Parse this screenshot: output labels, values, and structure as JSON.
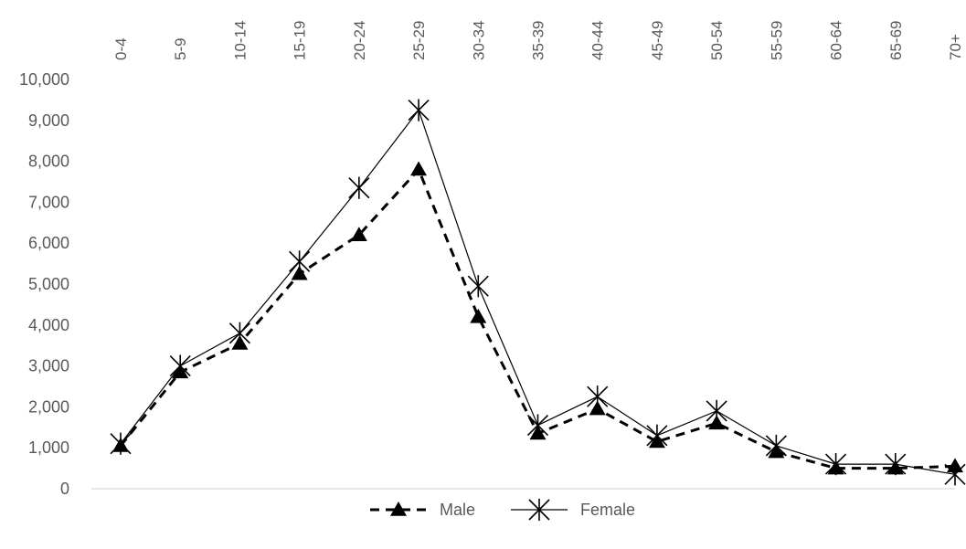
{
  "chart_data": {
    "type": "line",
    "categories": [
      "0-4",
      "5-9",
      "10-14",
      "15-19",
      "20-24",
      "25-29",
      "30-34",
      "35-39",
      "40-44",
      "45-49",
      "50-54",
      "55-59",
      "60-64",
      "65-69",
      "70+"
    ],
    "series": [
      {
        "name": "Male",
        "values": [
          1050,
          2850,
          3550,
          5250,
          6200,
          7800,
          4200,
          1350,
          1950,
          1150,
          1600,
          900,
          500,
          500,
          550
        ],
        "color": "#000000",
        "line_style": "dashed",
        "marker": "triangle"
      },
      {
        "name": "Female",
        "values": [
          1100,
          3000,
          3800,
          5550,
          7350,
          9250,
          4950,
          1550,
          2250,
          1300,
          1900,
          1050,
          600,
          600,
          350
        ],
        "color": "#000000",
        "line_style": "solid",
        "marker": "asterisk"
      }
    ],
    "ylim": [
      0,
      10000
    ],
    "yticks": [
      "0",
      "1,000",
      "2,000",
      "3,000",
      "4,000",
      "5,000",
      "6,000",
      "7,000",
      "8,000",
      "9,000",
      "10,000"
    ],
    "x_axis_position": "top",
    "x_tick_rotation": "vertical",
    "legend_position": "bottom-center",
    "grid": false
  }
}
